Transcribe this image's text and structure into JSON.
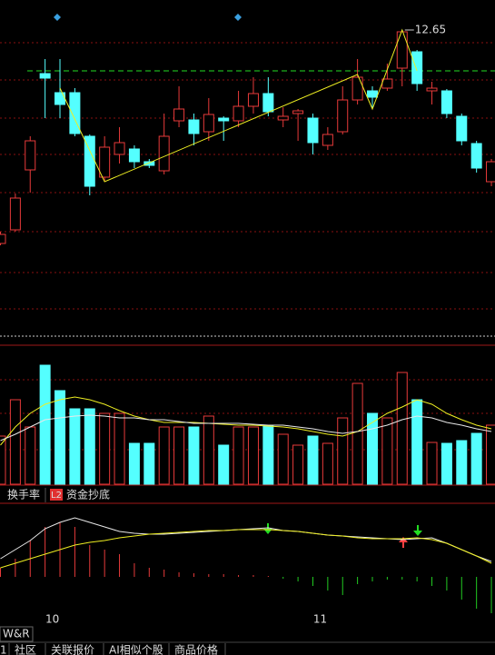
{
  "chart_data": [
    {
      "type": "candlestick",
      "categories": [
        null,
        null,
        null,
        "10",
        null,
        null,
        null,
        null,
        null,
        null,
        null,
        null,
        null,
        null,
        null,
        null,
        null,
        null,
        null,
        null,
        null,
        "11",
        null,
        null,
        null,
        null,
        null,
        null,
        null,
        null,
        null,
        null,
        null,
        null
      ],
      "open": [
        10.3,
        10.45,
        11.11,
        12.17,
        11.96,
        11.96,
        11.48,
        11.03,
        11.28,
        11.34,
        11.2,
        11.1,
        11.65,
        11.66,
        11.53,
        11.68,
        11.65,
        11.81,
        11.95,
        11.66,
        11.73,
        11.68,
        11.38,
        11.53,
        11.88,
        11.98,
        12.01,
        12.23,
        12.41,
        11.98,
        11.98,
        11.7,
        11.4,
        10.98
      ],
      "high": [
        10.43,
        10.85,
        11.48,
        12.33,
        12.33,
        12.01,
        11.5,
        11.48,
        11.58,
        11.38,
        11.23,
        11.73,
        12.03,
        11.73,
        11.9,
        11.7,
        11.98,
        12.13,
        12.13,
        11.8,
        11.78,
        11.73,
        11.58,
        12.03,
        12.33,
        12.03,
        12.28,
        12.65,
        12.43,
        12.08,
        12.0,
        11.73,
        11.43,
        11.23
      ],
      "low": [
        10.28,
        10.43,
        10.86,
        11.68,
        11.68,
        11.48,
        10.83,
        10.98,
        11.18,
        11.13,
        11.13,
        11.06,
        11.58,
        11.38,
        11.43,
        11.43,
        11.58,
        11.73,
        11.7,
        11.58,
        11.43,
        11.28,
        11.33,
        11.5,
        11.83,
        11.78,
        11.98,
        12.03,
        11.98,
        11.83,
        11.68,
        11.38,
        11.08,
        10.93
      ],
      "close": [
        10.4,
        10.8,
        11.43,
        12.12,
        11.83,
        11.51,
        10.93,
        11.36,
        11.41,
        11.2,
        11.16,
        11.48,
        11.78,
        11.51,
        11.72,
        11.65,
        11.81,
        11.95,
        11.75,
        11.7,
        11.76,
        11.41,
        11.5,
        11.88,
        12.13,
        11.91,
        12.11,
        12.63,
        12.06,
        12.01,
        11.73,
        11.43,
        11.13,
        11.2
      ],
      "up_color": "#e83a3a",
      "down_color": "#54ffff",
      "ylim": [
        9.28,
        12.98
      ],
      "level": 12.2,
      "level_color": "#22dd22",
      "zigzag": {
        "x": [
          4,
          7,
          24,
          25,
          27,
          28
        ],
        "values": [
          12.01,
          10.98,
          12.16,
          11.78,
          12.65,
          12.2
        ],
        "color": "#eeee22"
      },
      "peak_label": "12.65"
    },
    {
      "type": "volume",
      "values": [
        53,
        93,
        63,
        131,
        103,
        83,
        83,
        78,
        78,
        45,
        45,
        63,
        63,
        63,
        75,
        43,
        63,
        63,
        65,
        55,
        43,
        53,
        45,
        73,
        111,
        78,
        73,
        123,
        93,
        46,
        45,
        48,
        56,
        65
      ],
      "ylim": [
        0,
        153
      ],
      "series": [
        {
          "color": "#eeee22",
          "values": [
            43,
            63,
            78,
            88,
            93,
            96,
            93,
            88,
            81,
            75,
            71,
            68,
            68,
            68,
            67,
            66,
            65,
            65,
            64,
            63,
            61,
            58,
            55,
            53,
            58,
            68,
            78,
            85,
            93,
            88,
            78,
            71,
            65,
            61
          ]
        },
        {
          "color": "#e8e8e8",
          "values": [
            48,
            55,
            63,
            71,
            73,
            75,
            76,
            75,
            73,
            73,
            71,
            71,
            69,
            67,
            67,
            67,
            67,
            66,
            65,
            65,
            63,
            61,
            58,
            56,
            58,
            61,
            65,
            71,
            75,
            73,
            68,
            65,
            61,
            58
          ]
        }
      ]
    },
    {
      "type": "wr",
      "title": "W&R",
      "ylim": [
        -55,
        75
      ],
      "histogram": [
        10,
        20,
        40,
        55,
        60,
        55,
        35,
        30,
        25,
        15,
        10,
        8,
        5,
        4,
        3,
        3,
        2,
        2,
        1,
        -2,
        -5,
        -10,
        -15,
        -20,
        -8,
        -5,
        -3,
        -3,
        -5,
        -10,
        -15,
        -25,
        -35,
        -40
      ],
      "series": [
        {
          "color": "#e8e8e8",
          "values": [
            20,
            30,
            40,
            53,
            60,
            65,
            60,
            55,
            50,
            48,
            47,
            47,
            48,
            49,
            50,
            51,
            52,
            53,
            54,
            51,
            50,
            48,
            46,
            45,
            44,
            43,
            42,
            41,
            42,
            43,
            37,
            30,
            23,
            17
          ]
        },
        {
          "color": "#eeee22",
          "values": [
            10,
            15,
            20,
            25,
            30,
            35,
            38,
            40,
            43,
            45,
            47,
            48,
            49,
            50,
            51,
            51,
            52,
            52,
            52,
            51,
            50,
            48,
            46,
            45,
            43,
            42,
            42,
            42,
            43,
            41,
            37,
            30,
            23,
            15
          ]
        }
      ]
    }
  ],
  "toolbar": [
    "换手率",
    "L2",
    "资金抄底"
  ],
  "footer_tabs": [
    "1",
    "社区",
    "关联报价",
    "AI相似个股",
    "商品价格"
  ]
}
